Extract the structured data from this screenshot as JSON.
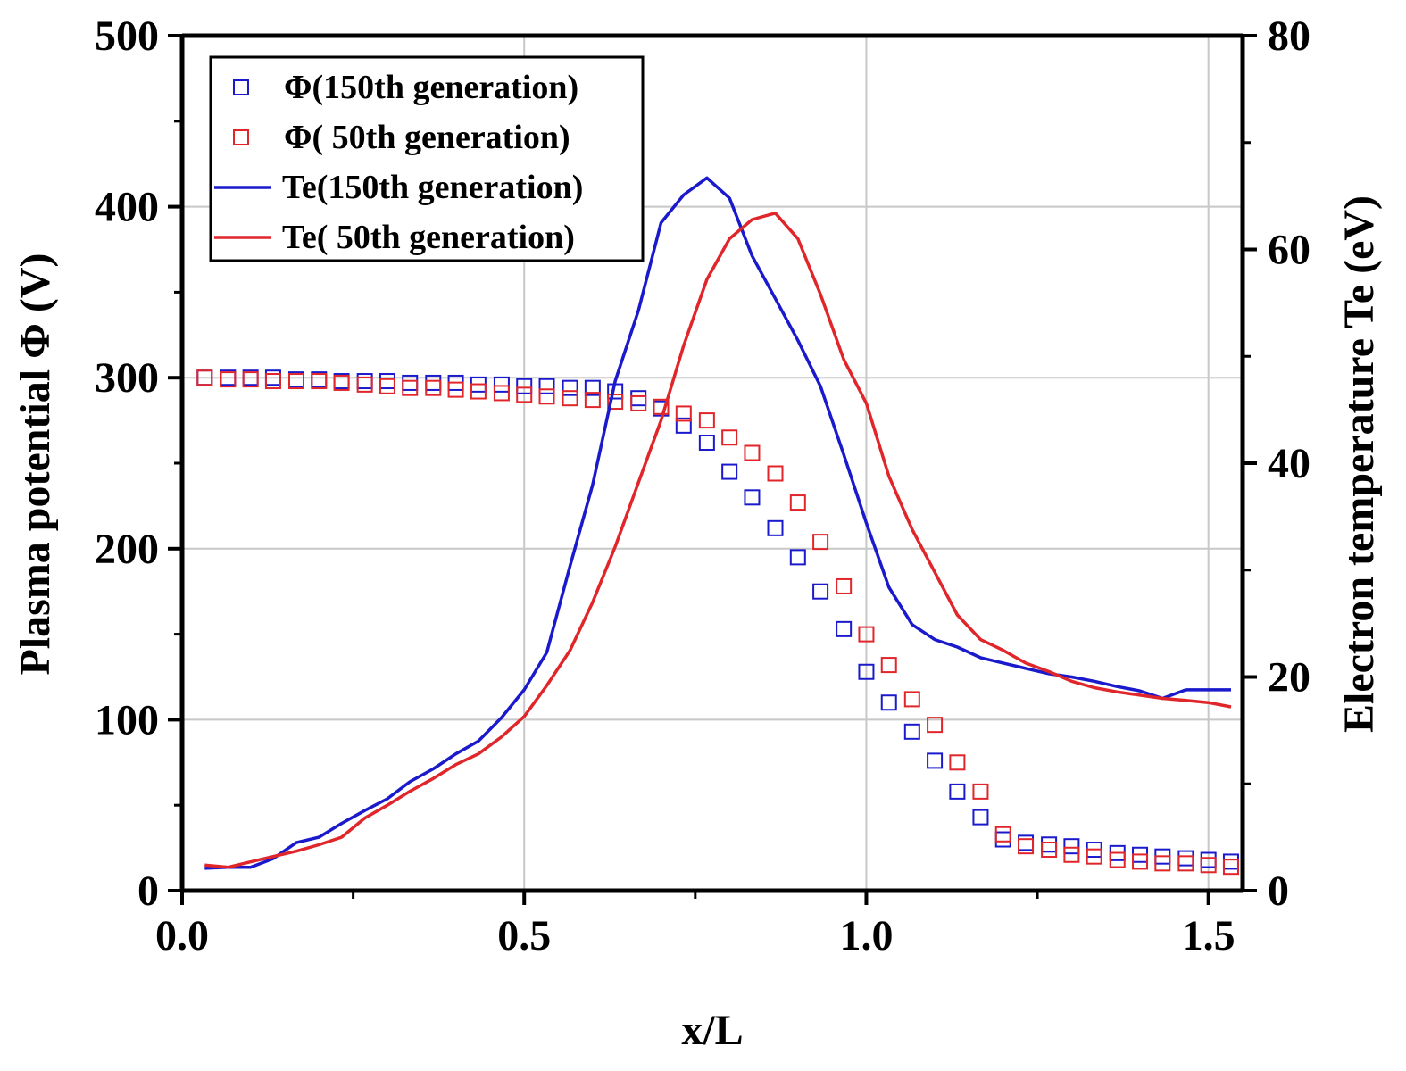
{
  "chart_data": {
    "type": "line",
    "xlabel": "x/L",
    "ylabel_left": "Plasma potential Φ (V)",
    "ylabel_right": "Electron temperature Te (eV)",
    "xlim": [
      0.0,
      1.55
    ],
    "ylim_left": [
      0,
      500
    ],
    "ylim_right": [
      0,
      80
    ],
    "x_ticks": [
      0.0,
      0.5,
      1.0,
      1.5
    ],
    "x_tick_labels": [
      "0.0",
      "0.5",
      "1.0",
      "1.5"
    ],
    "y_left_ticks": [
      0,
      100,
      200,
      300,
      400,
      500
    ],
    "y_left_tick_labels": [
      "0",
      "100",
      "200",
      "300",
      "400",
      "500"
    ],
    "y_right_ticks": [
      0,
      20,
      40,
      60,
      80
    ],
    "y_right_tick_labels": [
      "0",
      "20",
      "40",
      "60",
      "80"
    ],
    "grid": true,
    "legend_position": "top-left",
    "series": [
      {
        "name": "Φ(150th generation)",
        "kind": "scatter",
        "marker": "open-square",
        "axis": "left",
        "color": "#1a1acc",
        "x": [
          0.033,
          0.067,
          0.1,
          0.133,
          0.167,
          0.2,
          0.233,
          0.267,
          0.3,
          0.333,
          0.367,
          0.4,
          0.433,
          0.467,
          0.5,
          0.533,
          0.567,
          0.6,
          0.633,
          0.667,
          0.7,
          0.733,
          0.767,
          0.8,
          0.833,
          0.867,
          0.9,
          0.933,
          0.967,
          1.0,
          1.033,
          1.067,
          1.1,
          1.133,
          1.167,
          1.2,
          1.233,
          1.267,
          1.3,
          1.333,
          1.367,
          1.4,
          1.433,
          1.467,
          1.5,
          1.533
        ],
        "y": [
          300,
          300,
          300,
          300,
          299,
          299,
          298,
          298,
          298,
          297,
          297,
          297,
          296,
          296,
          295,
          295,
          294,
          294,
          292,
          288,
          282,
          272,
          262,
          245,
          230,
          212,
          195,
          175,
          153,
          128,
          110,
          93,
          76,
          58,
          43,
          30,
          28,
          27,
          26,
          24,
          22,
          21,
          20,
          19,
          18,
          17
        ]
      },
      {
        "name": "Φ( 50th generation)",
        "kind": "scatter",
        "marker": "open-square",
        "axis": "left",
        "color": "#e0262a",
        "x": [
          0.033,
          0.067,
          0.1,
          0.133,
          0.167,
          0.2,
          0.233,
          0.267,
          0.3,
          0.333,
          0.367,
          0.4,
          0.433,
          0.467,
          0.5,
          0.533,
          0.567,
          0.6,
          0.633,
          0.667,
          0.7,
          0.733,
          0.767,
          0.8,
          0.833,
          0.867,
          0.9,
          0.933,
          0.967,
          1.0,
          1.033,
          1.067,
          1.1,
          1.133,
          1.167,
          1.2,
          1.233,
          1.267,
          1.3,
          1.333,
          1.367,
          1.4,
          1.433,
          1.467,
          1.5,
          1.533
        ],
        "y": [
          300,
          299,
          299,
          298,
          298,
          298,
          297,
          296,
          295,
          294,
          294,
          293,
          292,
          291,
          290,
          289,
          288,
          287,
          286,
          285,
          283,
          279,
          275,
          265,
          256,
          244,
          227,
          204,
          178,
          150,
          132,
          112,
          97,
          75,
          58,
          33,
          26,
          24,
          21,
          20,
          18,
          17,
          16,
          16,
          15,
          14
        ]
      },
      {
        "name": "Te(150th generation)",
        "kind": "line",
        "axis": "right",
        "color": "#1a1acc",
        "x": [
          0.033,
          0.067,
          0.1,
          0.133,
          0.167,
          0.2,
          0.233,
          0.267,
          0.3,
          0.333,
          0.367,
          0.4,
          0.433,
          0.467,
          0.5,
          0.533,
          0.567,
          0.6,
          0.633,
          0.667,
          0.7,
          0.733,
          0.767,
          0.8,
          0.833,
          0.867,
          0.9,
          0.933,
          0.967,
          1.0,
          1.033,
          1.067,
          1.1,
          1.133,
          1.167,
          1.2,
          1.233,
          1.267,
          1.3,
          1.333,
          1.367,
          1.4,
          1.433,
          1.467,
          1.5,
          1.533
        ],
        "y": [
          2.1,
          2.2,
          2.2,
          3.0,
          4.5,
          5.0,
          6.3,
          7.5,
          8.6,
          10.2,
          11.4,
          12.8,
          14.0,
          16.2,
          18.8,
          22.3,
          30.4,
          38.0,
          47.7,
          54.3,
          62.5,
          65.1,
          66.7,
          64.8,
          59.4,
          55.4,
          51.5,
          47.2,
          40.8,
          34.4,
          28.4,
          24.9,
          23.5,
          22.8,
          21.8,
          21.3,
          20.8,
          20.3,
          20.0,
          19.6,
          19.1,
          18.7,
          18.0,
          18.8,
          18.8,
          18.8
        ]
      },
      {
        "name": "Te( 50th generation)",
        "kind": "line",
        "axis": "right",
        "color": "#e0262a",
        "x": [
          0.033,
          0.067,
          0.1,
          0.133,
          0.167,
          0.2,
          0.233,
          0.267,
          0.3,
          0.333,
          0.367,
          0.4,
          0.433,
          0.467,
          0.5,
          0.533,
          0.567,
          0.6,
          0.633,
          0.667,
          0.7,
          0.733,
          0.767,
          0.8,
          0.833,
          0.867,
          0.9,
          0.933,
          0.967,
          1.0,
          1.033,
          1.067,
          1.1,
          1.133,
          1.167,
          1.2,
          1.233,
          1.267,
          1.3,
          1.333,
          1.367,
          1.4,
          1.433,
          1.467,
          1.5,
          1.533
        ],
        "y": [
          2.4,
          2.2,
          2.7,
          3.2,
          3.7,
          4.3,
          5.0,
          6.8,
          8.0,
          9.3,
          10.5,
          11.8,
          12.8,
          14.4,
          16.3,
          19.2,
          22.5,
          27.0,
          32.2,
          38.2,
          44.0,
          51.0,
          57.2,
          61.0,
          62.8,
          63.4,
          61.0,
          55.8,
          49.7,
          45.6,
          38.8,
          33.8,
          29.8,
          25.8,
          23.5,
          22.5,
          21.3,
          20.5,
          19.6,
          19.0,
          18.6,
          18.3,
          18.0,
          17.8,
          17.6,
          17.2
        ]
      }
    ]
  },
  "colors": {
    "series_blue": "#1a1acc",
    "series_red": "#e0262a",
    "grid": "#c8c8c8",
    "axis": "#000000"
  }
}
